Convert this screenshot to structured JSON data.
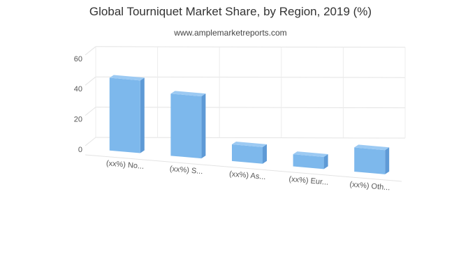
{
  "chart_data": {
    "type": "bar",
    "title": "Global Tourniquet Market Share, by Region, 2019 (%)",
    "subtitle": "www.amplemarketreports.com",
    "categories": [
      "(xx%) No...",
      "(xx%) S...",
      "(xx%) As...",
      "(xx%) Eur...",
      "(xx%) Oth..."
    ],
    "values": [
      48,
      41,
      11,
      8,
      16
    ],
    "yticks": [
      0,
      20,
      40,
      60
    ],
    "ylim": [
      0,
      60
    ],
    "xlabel": "",
    "ylabel": "",
    "grid": true,
    "legend": "none",
    "bar_color": "#7db8ec",
    "bar_side_color": "#5e9ad6",
    "bar_top_color": "#9ccaf3"
  }
}
